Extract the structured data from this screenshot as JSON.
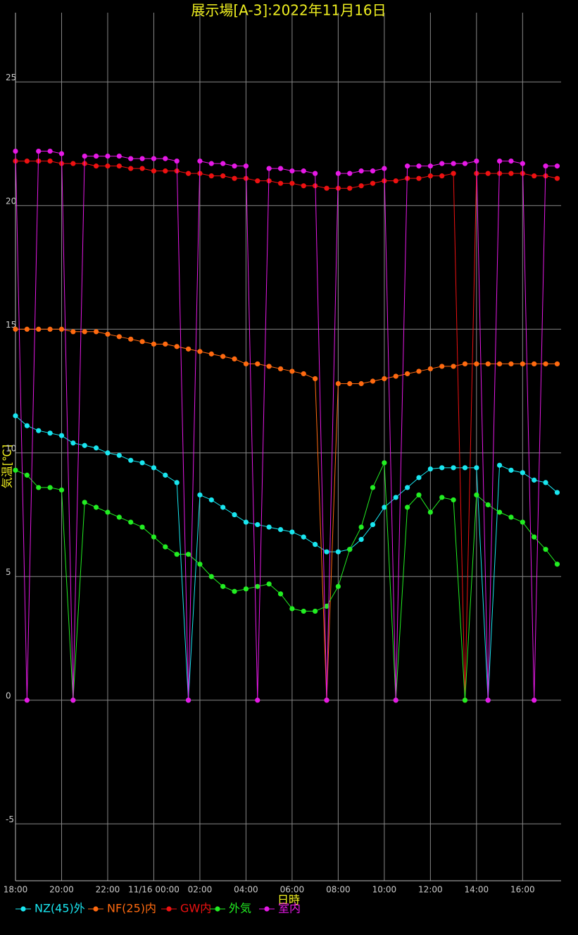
{
  "chart_data": {
    "type": "line",
    "title": "展示場[A-3]:2022年11月16日",
    "x_label": "日時",
    "y_label": "気温[℃]",
    "x": [
      0,
      0.5,
      1,
      1.5,
      2,
      2.5,
      3,
      3.5,
      4,
      4.5,
      5,
      5.5,
      6,
      6.5,
      7,
      7.5,
      8,
      8.5,
      9,
      9.5,
      10,
      10.5,
      11,
      11.5,
      12,
      12.5,
      13,
      13.5,
      14,
      14.5,
      15,
      15.5,
      16,
      16.5,
      17,
      17.5,
      18,
      18.5,
      19,
      19.5,
      20,
      20.5,
      21,
      21.5,
      22,
      22.5,
      23,
      23.5
    ],
    "xlim": [
      0,
      23.67
    ],
    "xticks": [
      {
        "value": 0,
        "label": "18:00"
      },
      {
        "value": 2,
        "label": "20:00"
      },
      {
        "value": 4,
        "label": "22:00"
      },
      {
        "value": 6,
        "label": "11/16 00:00"
      },
      {
        "value": 8,
        "label": "02:00"
      },
      {
        "value": 10,
        "label": "04:00"
      },
      {
        "value": 12,
        "label": "06:00"
      },
      {
        "value": 14,
        "label": "08:00"
      },
      {
        "value": 16,
        "label": "10:00"
      },
      {
        "value": 18,
        "label": "12:00"
      },
      {
        "value": 20,
        "label": "14:00"
      },
      {
        "value": 22,
        "label": "16:00"
      }
    ],
    "ylim": [
      -7.3,
      27.8
    ],
    "yticks": [
      -5,
      0,
      5,
      10,
      15,
      20,
      25
    ],
    "grid": true,
    "series": [
      {
        "name": "NZ(45)外",
        "color": "#19e6f0",
        "values": [
          11.5,
          11.1,
          10.9,
          10.8,
          10.7,
          10.4,
          10.3,
          10.2,
          10.0,
          9.9,
          9.7,
          9.6,
          9.4,
          9.1,
          8.8,
          0,
          8.3,
          8.1,
          7.8,
          7.5,
          7.2,
          7.1,
          7.0,
          6.9,
          6.8,
          6.6,
          6.3,
          6.0,
          6.0,
          6.1,
          6.5,
          7.1,
          7.8,
          8.2,
          8.6,
          9.0,
          9.35,
          9.4,
          9.4,
          9.4,
          9.4,
          0,
          9.5,
          9.3,
          9.2,
          8.9,
          8.8,
          8.4
        ]
      },
      {
        "name": "NF(25)内",
        "color": "#ff6a10",
        "values": [
          15.0,
          15.0,
          15.0,
          15.0,
          15.0,
          14.9,
          14.9,
          14.9,
          14.8,
          14.7,
          14.6,
          14.5,
          14.4,
          14.4,
          14.3,
          14.2,
          14.1,
          14.0,
          13.9,
          13.8,
          13.6,
          13.6,
          13.5,
          13.4,
          13.3,
          13.2,
          13.0,
          0,
          12.8,
          12.8,
          12.8,
          12.9,
          13.0,
          13.1,
          13.2,
          13.3,
          13.4,
          13.5,
          13.5,
          13.6,
          13.6,
          13.6,
          13.6,
          13.6,
          13.6,
          13.6,
          13.6,
          13.6
        ]
      },
      {
        "name": "GW内",
        "color": "#ee1111",
        "values": [
          21.8,
          21.8,
          21.8,
          21.8,
          21.7,
          21.7,
          21.7,
          21.6,
          21.6,
          21.6,
          21.5,
          21.5,
          21.4,
          21.4,
          21.4,
          21.3,
          21.3,
          21.2,
          21.2,
          21.1,
          21.1,
          21.0,
          21.0,
          20.9,
          20.9,
          20.8,
          20.8,
          20.7,
          20.7,
          20.7,
          20.8,
          20.9,
          21.0,
          21.0,
          21.1,
          21.1,
          21.2,
          21.2,
          21.3,
          0,
          21.3,
          21.3,
          21.3,
          21.3,
          21.3,
          21.2,
          21.2,
          21.1
        ]
      },
      {
        "name": "外気",
        "color": "#22ee22",
        "values": [
          9.3,
          9.1,
          8.6,
          8.6,
          8.5,
          0,
          8.0,
          7.8,
          7.6,
          7.4,
          7.2,
          7.0,
          6.6,
          6.2,
          5.9,
          5.9,
          5.5,
          5.0,
          4.6,
          4.4,
          4.5,
          4.6,
          4.7,
          4.3,
          3.7,
          3.6,
          3.6,
          3.8,
          4.6,
          6.1,
          7.0,
          8.6,
          9.6,
          0,
          7.8,
          8.3,
          7.6,
          8.2,
          8.1,
          0,
          8.3,
          7.9,
          7.6,
          7.4,
          7.2,
          6.6,
          6.1,
          5.5
        ]
      },
      {
        "name": "室内",
        "color": "#e619e6",
        "values": [
          22.2,
          0,
          22.2,
          22.2,
          22.1,
          0,
          22.0,
          22.0,
          22.0,
          22.0,
          21.9,
          21.9,
          21.9,
          21.9,
          21.8,
          0,
          21.8,
          21.7,
          21.7,
          21.6,
          21.6,
          0,
          21.5,
          21.5,
          21.4,
          21.4,
          21.3,
          0,
          21.3,
          21.3,
          21.4,
          21.4,
          21.5,
          0,
          21.6,
          21.6,
          21.6,
          21.7,
          21.7,
          21.7,
          21.8,
          0,
          21.8,
          21.8,
          21.7,
          0,
          21.6,
          21.6
        ]
      }
    ]
  }
}
